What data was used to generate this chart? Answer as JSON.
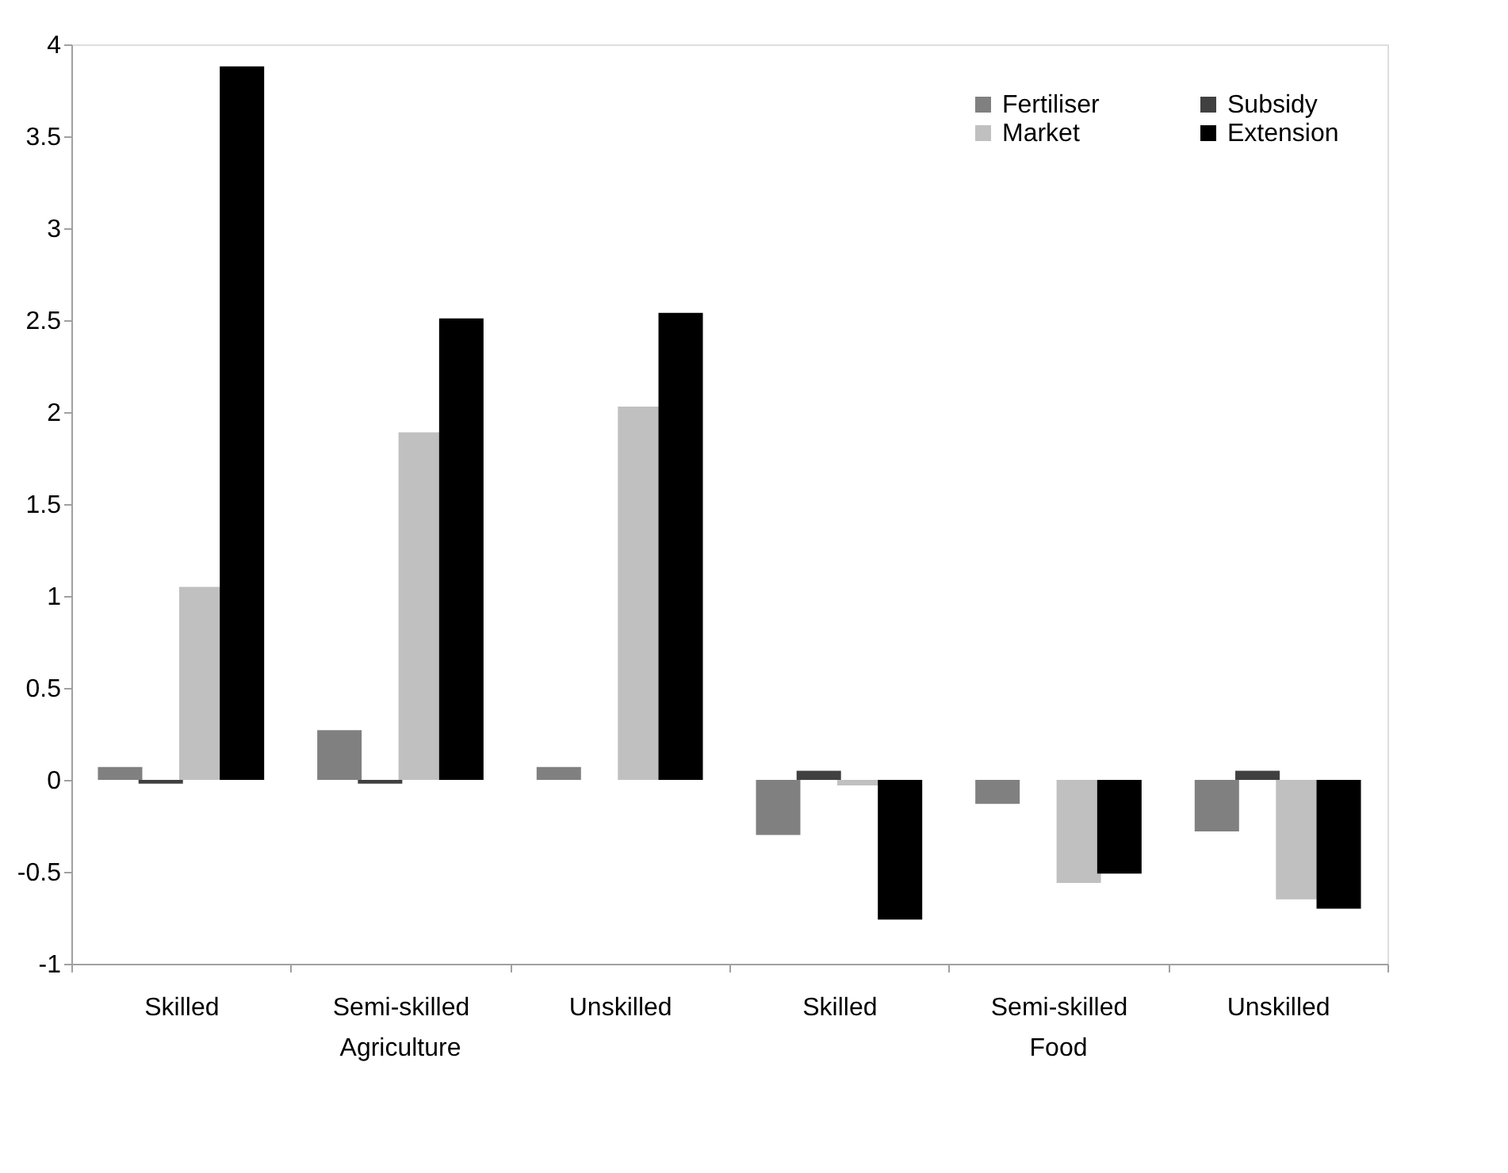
{
  "chart_data": {
    "type": "bar",
    "categories": [
      "Skilled",
      "Semi-skilled",
      "Unskilled",
      "Skilled",
      "Semi-skilled",
      "Unskilled"
    ],
    "series": [
      {
        "name": "Fertiliser",
        "color": "#808080",
        "values": [
          0.07,
          0.27,
          0.07,
          -0.3,
          -0.13,
          -0.28
        ]
      },
      {
        "name": "Subsidy",
        "color": "#404040",
        "values": [
          -0.02,
          -0.02,
          0.0,
          0.05,
          0.0,
          0.05
        ]
      },
      {
        "name": "Market",
        "color": "#c0c0c0",
        "values": [
          1.05,
          1.89,
          2.03,
          -0.03,
          -0.56,
          -0.65
        ]
      },
      {
        "name": "Extension",
        "color": "#000000",
        "values": [
          3.88,
          2.51,
          2.54,
          -0.76,
          -0.51,
          -0.7
        ]
      }
    ],
    "annotations": [
      "Agriculture",
      "Food"
    ],
    "ylim": [
      -1,
      4
    ],
    "yticks": [
      -1,
      -0.5,
      0,
      0.5,
      1,
      1.5,
      2,
      2.5,
      3,
      3.5,
      4
    ],
    "grid": false,
    "legend": "top right"
  }
}
